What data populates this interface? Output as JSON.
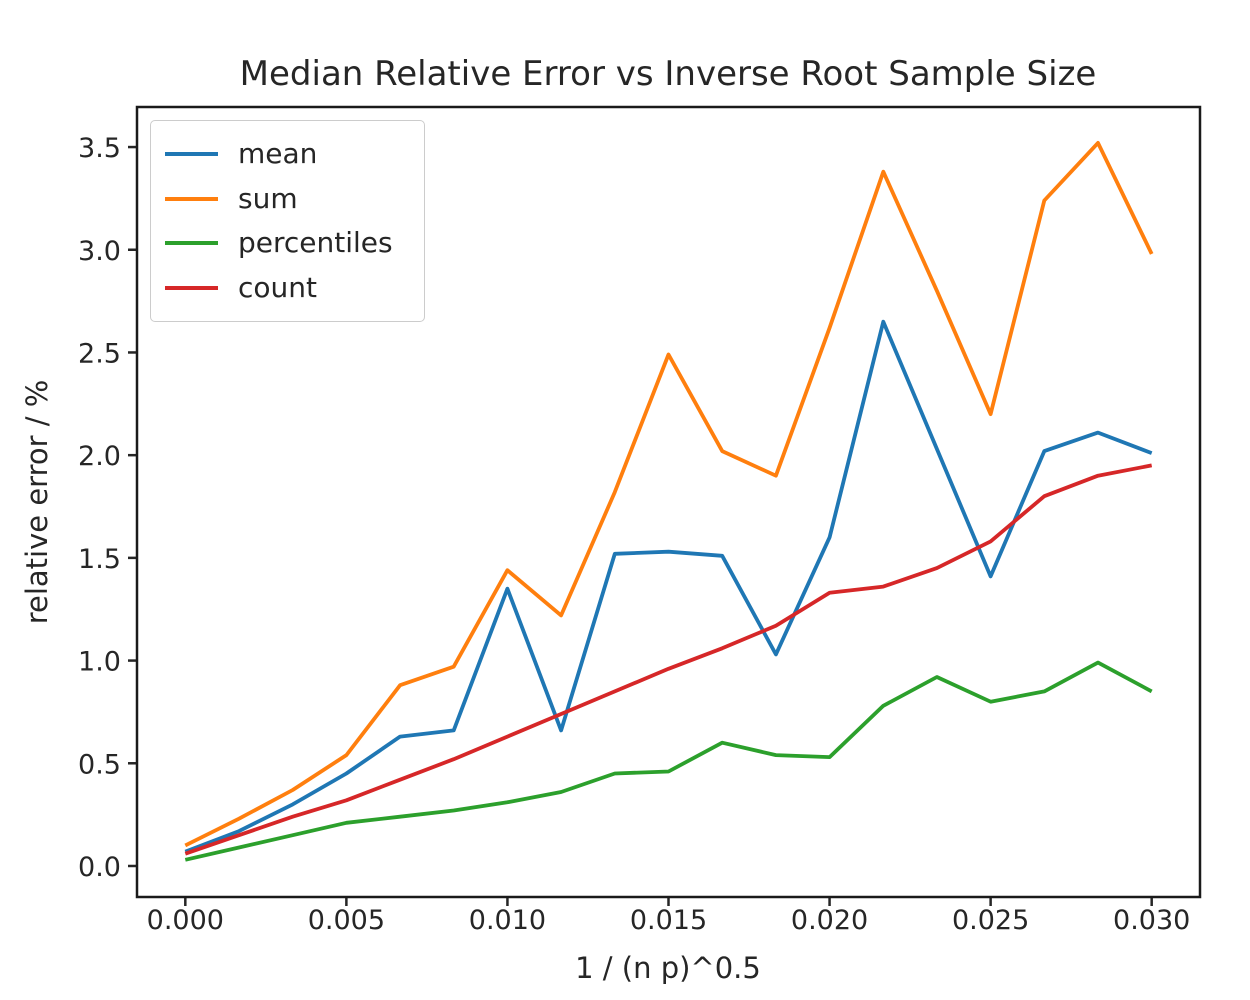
{
  "title": "Median Relative Error vs Inverse Root Sample Size",
  "chart_data": {
    "type": "line",
    "title": "Median Relative Error vs Inverse Root Sample Size",
    "xlabel": "1 / (n p)^0.5",
    "ylabel": "relative error / %",
    "grid": false,
    "legend_position": "upper left",
    "xlim": [
      -0.0015,
      0.0315
    ],
    "ylim": [
      -0.151,
      3.695
    ],
    "x_ticks": [
      0,
      0.005,
      0.01,
      0.015,
      0.02,
      0.025,
      0.03
    ],
    "x_tick_labels": [
      "0.000",
      "0.005",
      "0.010",
      "0.015",
      "0.020",
      "0.025",
      "0.030"
    ],
    "y_ticks": [
      0,
      0.5,
      1,
      1.5,
      2,
      2.5,
      3,
      3.5
    ],
    "y_tick_labels": [
      "0.0",
      "0.5",
      "1.0",
      "1.5",
      "2.0",
      "2.5",
      "3.0",
      "3.5"
    ],
    "x": [
      0.0,
      0.001667,
      0.003333,
      0.005,
      0.006667,
      0.008333,
      0.01,
      0.011667,
      0.013333,
      0.015,
      0.016667,
      0.018333,
      0.02,
      0.021667,
      0.023333,
      0.025,
      0.026667,
      0.028333,
      0.03
    ],
    "series": [
      {
        "name": "mean",
        "color": "#1f77b4",
        "values": [
          0.07,
          0.17,
          0.3,
          0.45,
          0.63,
          0.66,
          1.35,
          0.66,
          1.52,
          1.53,
          1.51,
          1.03,
          1.6,
          2.65,
          2.03,
          1.41,
          2.02,
          2.11,
          2.01
        ]
      },
      {
        "name": "sum",
        "color": "#ff7f0e",
        "values": [
          0.1,
          0.23,
          0.37,
          0.54,
          0.88,
          0.97,
          1.44,
          1.22,
          1.82,
          2.49,
          2.02,
          1.9,
          2.62,
          3.38,
          2.8,
          2.2,
          3.24,
          3.52,
          2.98
        ]
      },
      {
        "name": "percentiles",
        "color": "#2ca02c",
        "values": [
          0.03,
          0.09,
          0.15,
          0.21,
          0.24,
          0.27,
          0.31,
          0.36,
          0.45,
          0.46,
          0.6,
          0.54,
          0.53,
          0.78,
          0.92,
          0.8,
          0.85,
          0.99,
          0.85
        ]
      },
      {
        "name": "count",
        "color": "#d62728",
        "values": [
          0.06,
          0.15,
          0.24,
          0.32,
          0.42,
          0.52,
          0.63,
          0.74,
          0.85,
          0.96,
          1.06,
          1.17,
          1.33,
          1.36,
          1.45,
          1.58,
          1.8,
          1.9,
          1.95
        ]
      }
    ]
  }
}
